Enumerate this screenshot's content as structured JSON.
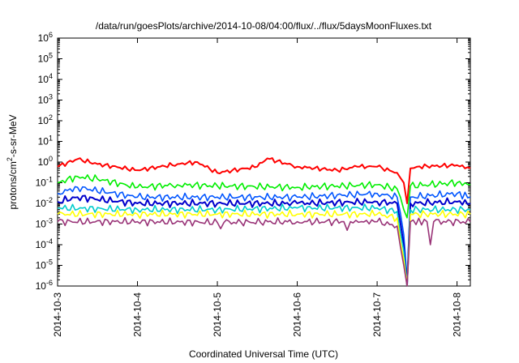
{
  "chart_data": {
    "type": "line",
    "title": "/data/run/goesPlots/archive/2014-10-08/04:00/flux/../flux/5daysMoonFluxes.txt",
    "xlabel": "Coordinated Universal Time (UTC)",
    "ylabel": {
      "base": "protons/cm",
      "sup": "2",
      "rest": "-s-sr-MeV"
    },
    "y_scale": "log",
    "ylim": [
      1e-06,
      1000000.0
    ],
    "y_ticks": [
      {
        "exp": -6,
        "base": "10",
        "sup": "-6"
      },
      {
        "exp": -5,
        "base": "10",
        "sup": "-5"
      },
      {
        "exp": -4,
        "base": "10",
        "sup": "-4"
      },
      {
        "exp": -3,
        "base": "10",
        "sup": "-3"
      },
      {
        "exp": -2,
        "base": "10",
        "sup": "-2"
      },
      {
        "exp": -1,
        "base": "10",
        "sup": "-1"
      },
      {
        "exp": 0,
        "base": "10",
        "sup": "0"
      },
      {
        "exp": 1,
        "base": "10",
        "sup": "1"
      },
      {
        "exp": 2,
        "base": "10",
        "sup": "2"
      },
      {
        "exp": 3,
        "base": "10",
        "sup": "3"
      },
      {
        "exp": 4,
        "base": "10",
        "sup": "4"
      },
      {
        "exp": 5,
        "base": "10",
        "sup": "5"
      },
      {
        "exp": 6,
        "base": "10",
        "sup": "6"
      }
    ],
    "x_range": [
      "2014-10-03 00:00",
      "2014-10-08 04:00"
    ],
    "x_ticks": [
      "2014-10-3",
      "2014-10-4",
      "2014-10-5",
      "2014-10-6",
      "2014-10-7",
      "2014-10-8"
    ],
    "grid": false,
    "legend": "none",
    "series": [
      {
        "color": "#ff0000",
        "points": [
          [
            "2014-10-03 00:00",
            0.6
          ],
          [
            "2014-10-03 06:00",
            1.4
          ],
          [
            "2014-10-03 12:00",
            0.8
          ],
          [
            "2014-10-04 00:00",
            0.4
          ],
          [
            "2014-10-04 12:00",
            0.8
          ],
          [
            "2014-10-04 18:00",
            1.0
          ],
          [
            "2014-10-05 00:00",
            0.3
          ],
          [
            "2014-10-05 12:00",
            0.6
          ],
          [
            "2014-10-05 15:00",
            1.5
          ],
          [
            "2014-10-06 00:00",
            0.6
          ],
          [
            "2014-10-06 12:00",
            0.4
          ],
          [
            "2014-10-06 18:00",
            0.6
          ],
          [
            "2014-10-07 00:00",
            0.6
          ],
          [
            "2014-10-07 06:00",
            0.3
          ],
          [
            "2014-10-07 08:00",
            0.1
          ],
          [
            "2014-10-07 09:00",
            0.01
          ],
          [
            "2014-10-07 10:00",
            0.5
          ],
          [
            "2014-10-07 12:00",
            0.6
          ],
          [
            "2014-10-08 00:00",
            0.7
          ],
          [
            "2014-10-08 04:00",
            0.5
          ]
        ]
      },
      {
        "color": "#00ee00",
        "points": [
          [
            "2014-10-03 00:00",
            0.1
          ],
          [
            "2014-10-03 06:00",
            0.2
          ],
          [
            "2014-10-03 12:00",
            0.15
          ],
          [
            "2014-10-04 00:00",
            0.06
          ],
          [
            "2014-10-04 12:00",
            0.08
          ],
          [
            "2014-10-05 00:00",
            0.07
          ],
          [
            "2014-10-06 00:00",
            0.06
          ],
          [
            "2014-10-07 00:00",
            0.08
          ],
          [
            "2014-10-07 06:00",
            0.05
          ],
          [
            "2014-10-07 08:00",
            0.005
          ],
          [
            "2014-10-07 09:00",
            0.002
          ],
          [
            "2014-10-07 10:00",
            0.07
          ],
          [
            "2014-10-08 00:00",
            0.1
          ],
          [
            "2014-10-08 04:00",
            0.08
          ]
        ]
      },
      {
        "color": "#0055ff",
        "points": [
          [
            "2014-10-03 00:00",
            0.03
          ],
          [
            "2014-10-03 06:00",
            0.06
          ],
          [
            "2014-10-04 00:00",
            0.02
          ],
          [
            "2014-10-05 00:00",
            0.02
          ],
          [
            "2014-10-06 00:00",
            0.02
          ],
          [
            "2014-10-07 00:00",
            0.03
          ],
          [
            "2014-10-07 06:00",
            0.02
          ],
          [
            "2014-10-07 08:00",
            0.0003
          ],
          [
            "2014-10-07 09:00",
            2e-06
          ],
          [
            "2014-10-07 10:00",
            0.02
          ],
          [
            "2014-10-08 00:00",
            0.03
          ],
          [
            "2014-10-08 04:00",
            0.02
          ]
        ]
      },
      {
        "color": "#0000cc",
        "points": [
          [
            "2014-10-03 00:00",
            0.012
          ],
          [
            "2014-10-03 06:00",
            0.02
          ],
          [
            "2014-10-04 00:00",
            0.01
          ],
          [
            "2014-10-05 00:00",
            0.01
          ],
          [
            "2014-10-06 00:00",
            0.01
          ],
          [
            "2014-10-07 00:00",
            0.012
          ],
          [
            "2014-10-07 06:00",
            0.01
          ],
          [
            "2014-10-07 08:00",
            0.0001
          ],
          [
            "2014-10-07 09:00",
            1e-06
          ],
          [
            "2014-10-07 10:00",
            0.01
          ],
          [
            "2014-10-08 00:00",
            0.012
          ],
          [
            "2014-10-08 04:00",
            0.01
          ]
        ]
      },
      {
        "color": "#00cccc",
        "points": [
          [
            "2014-10-03 00:00",
            0.006
          ],
          [
            "2014-10-04 00:00",
            0.005
          ],
          [
            "2014-10-05 00:00",
            0.005
          ],
          [
            "2014-10-06 00:00",
            0.006
          ],
          [
            "2014-10-07 00:00",
            0.006
          ],
          [
            "2014-10-07 06:00",
            0.004
          ],
          [
            "2014-10-07 08:00",
            5e-05
          ],
          [
            "2014-10-07 09:00",
            1e-06
          ],
          [
            "2014-10-07 10:00",
            0.005
          ],
          [
            "2014-10-08 04:00",
            0.005
          ]
        ]
      },
      {
        "color": "#ffff00",
        "points": [
          [
            "2014-10-03 00:00",
            0.003
          ],
          [
            "2014-10-04 00:00",
            0.003
          ],
          [
            "2014-10-05 00:00",
            0.003
          ],
          [
            "2014-10-06 00:00",
            0.003
          ],
          [
            "2014-10-07 00:00",
            0.003
          ],
          [
            "2014-10-07 06:00",
            0.002
          ],
          [
            "2014-10-07 08:00",
            2e-05
          ],
          [
            "2014-10-07 09:00",
            1e-06
          ],
          [
            "2014-10-07 10:00",
            0.003
          ],
          [
            "2014-10-08 04:00",
            0.003
          ]
        ]
      },
      {
        "color": "#993377",
        "points": [
          [
            "2014-10-03 00:00",
            0.0013
          ],
          [
            "2014-10-04 00:00",
            0.0013
          ],
          [
            "2014-10-05 00:00",
            0.0012
          ],
          [
            "2014-10-05 01:00",
            0.0006
          ],
          [
            "2014-10-05 02:00",
            0.0012
          ],
          [
            "2014-10-06 00:00",
            0.0013
          ],
          [
            "2014-10-06 14:00",
            0.0013
          ],
          [
            "2014-10-06 15:00",
            0.0005
          ],
          [
            "2014-10-06 16:00",
            0.0013
          ],
          [
            "2014-10-07 00:00",
            0.0013
          ],
          [
            "2014-10-07 06:00",
            0.0008
          ],
          [
            "2014-10-07 08:00",
            1e-05
          ],
          [
            "2014-10-07 09:00",
            1e-06
          ],
          [
            "2014-10-07 10:00",
            0.0013
          ],
          [
            "2014-10-07 15:00",
            0.0013
          ],
          [
            "2014-10-07 16:00",
            0.0001
          ],
          [
            "2014-10-07 17:00",
            0.0013
          ],
          [
            "2014-10-08 04:00",
            0.0013
          ]
        ]
      }
    ]
  }
}
